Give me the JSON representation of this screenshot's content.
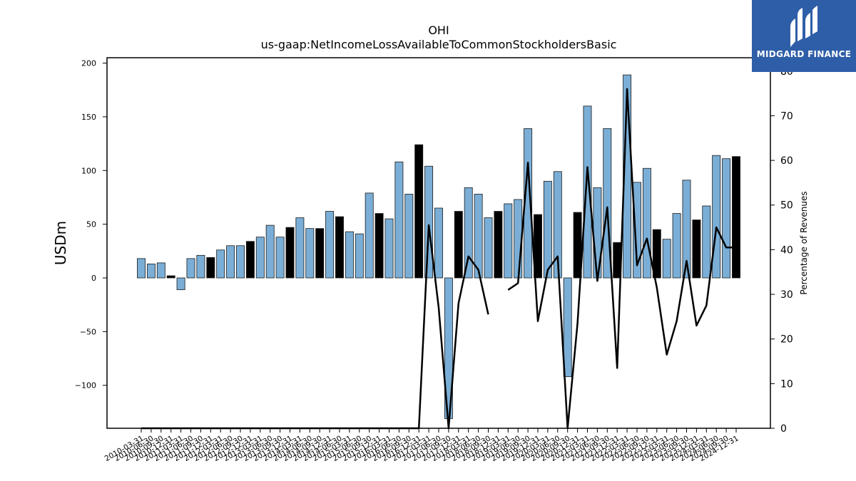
{
  "chart_data": {
    "type": "bar",
    "title": "OHI",
    "subtitle": "us-gaap:NetIncomeLossAvailableToCommonStockholdersBasic",
    "ylabel": "USDm",
    "y2label": "Percentage of Revenues",
    "ylim": [
      -140,
      205
    ],
    "y2lim": [
      0,
      83
    ],
    "yticks": [
      -100,
      -50,
      0,
      50,
      100,
      150,
      200
    ],
    "y2ticks": [
      0,
      10,
      20,
      30,
      40,
      50,
      60,
      70,
      80
    ],
    "grid": false,
    "colors": {
      "quarter_bar": "#7aaed6",
      "annual_bar": "#000000",
      "line": "#000000",
      "edge": "#1a1a1a"
    },
    "categories": [
      "2010-03-31",
      "2010-06-30",
      "2010-09-30",
      "2010-12-31",
      "2011-03-31",
      "2011-06-30",
      "2011-09-30",
      "2011-12-31",
      "2012-03-31",
      "2012-06-30",
      "2012-09-30",
      "2012-12-31",
      "2013-03-31",
      "2013-06-30",
      "2013-09-30",
      "2013-12-31",
      "2014-03-31",
      "2014-06-30",
      "2014-09-30",
      "2014-12-31",
      "2014-06-30",
      "2015-03-31",
      "2015-06-30",
      "2015-09-30",
      "2015-12-31",
      "2016-03-31",
      "2016-06-30",
      "2016-09-30",
      "2016-12-31",
      "2017-03-31",
      "2017-06-30",
      "2017-09-30",
      "2017-12-31",
      "2018-03-31",
      "2018-06-30",
      "2018-09-30",
      "2018-12-31",
      "2019-03-31",
      "2019-06-30",
      "2019-09-30",
      "2019-12-31",
      "2020-03-31",
      "2020-06-30",
      "2020-09-30",
      "2020-12-31",
      "2021-03-31",
      "2021-06-30",
      "2021-09-30",
      "2021-12-31",
      "2022-03-31",
      "2022-06-30",
      "2022-09-30",
      "2022-12-31",
      "2023-03-31",
      "2023-06-30",
      "2023-09-30",
      "2023-12-31",
      "2024-03-31",
      "2024-06-30",
      "2024-09-30",
      "2024-12-31"
    ],
    "series": [
      {
        "values": [
          18,
          13,
          14,
          2,
          -11,
          18,
          21,
          19,
          26,
          30,
          30,
          34,
          38,
          49,
          38,
          47,
          56,
          46,
          46,
          62,
          57,
          43,
          41,
          79,
          60,
          55,
          108,
          78,
          124,
          104,
          65,
          -131,
          62,
          84,
          78,
          56,
          62,
          69,
          73,
          139,
          59,
          90,
          99,
          -92,
          61,
          160,
          84,
          139,
          33,
          189,
          89,
          102,
          45,
          36,
          60,
          91,
          54,
          67,
          114,
          111,
          113
        ],
        "bar_kind": [
          "q",
          "q",
          "q",
          "a",
          "q",
          "q",
          "q",
          "a",
          "q",
          "q",
          "q",
          "a",
          "q",
          "q",
          "q",
          "a",
          "q",
          "q",
          "a",
          "q",
          "a",
          "q",
          "q",
          "q",
          "a",
          "q",
          "q",
          "q",
          "a",
          "q",
          "q",
          "q",
          "a",
          "q",
          "q",
          "q",
          "a",
          "q",
          "q",
          "q",
          "a",
          "q",
          "q",
          "q",
          "a",
          "q",
          "q",
          "q",
          "a",
          "q",
          "q",
          "q",
          "a",
          "q",
          "q",
          "q",
          "a",
          "q",
          "q",
          "q",
          "a"
        ]
      },
      {
        "name": "Percentage of Revenues",
        "axis": "right",
        "values": [
          0,
          0,
          0,
          0,
          0,
          0,
          0,
          0,
          0,
          0,
          0,
          0,
          0,
          0,
          0,
          0,
          0,
          0,
          0,
          0,
          0,
          0,
          0,
          0,
          0,
          0,
          0,
          0,
          0,
          45.5,
          27,
          0,
          28,
          38.5,
          35.5,
          25.5,
          null,
          31,
          32.5,
          59.5,
          24,
          35.5,
          38.5,
          0,
          23.5,
          58.5,
          33,
          49.5,
          13.5,
          76,
          36.5,
          42.5,
          31.5,
          16.5,
          24,
          37.5,
          23,
          27.5,
          45,
          40.5,
          40.5
        ]
      }
    ]
  },
  "logo": {
    "text": "MIDGARD FINANCE",
    "color": "#2f5ea8"
  }
}
